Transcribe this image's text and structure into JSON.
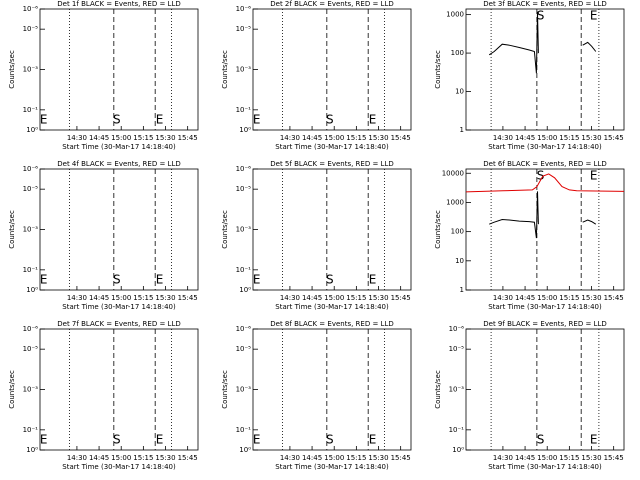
{
  "chart_data": [
    {
      "type": "line",
      "title": "Det 1f BLACK = Events, RED = LLD",
      "ylabel": "Counts/sec",
      "xlabel": "Start Time (30-Mar-17 14:18:40)",
      "log_y": true,
      "xlim": [
        845,
        952
      ],
      "ylim": [
        1,
        1e-06
      ],
      "xticks": [
        {
          "value": 870,
          "label": "14:30"
        },
        {
          "value": 885,
          "label": "14:45"
        },
        {
          "value": 900,
          "label": "15:00"
        },
        {
          "value": 915,
          "label": "15:15"
        },
        {
          "value": 930,
          "label": "15:30"
        },
        {
          "value": 945,
          "label": "15:45"
        }
      ],
      "yticks": [
        {
          "value": 1,
          "label": "10⁰"
        },
        {
          "value": 0.1,
          "label": "10⁻¹"
        },
        {
          "value": 0.001,
          "label": "10⁻³"
        },
        {
          "value": 1e-05,
          "label": "10⁻⁵"
        },
        {
          "value": 1e-06,
          "label": "10⁻⁶"
        }
      ],
      "vlines": [
        {
          "x": 865,
          "style": "dotted"
        },
        {
          "x": 895,
          "style": "dashed"
        },
        {
          "x": 923,
          "style": "dashed"
        },
        {
          "x": 934,
          "style": "dotted"
        }
      ],
      "annotations": [
        {
          "text": "E",
          "x": 847.5,
          "pos": "bottom"
        },
        {
          "text": "S",
          "x": 897,
          "pos": "bottom"
        },
        {
          "text": "E",
          "x": 926,
          "pos": "bottom"
        }
      ],
      "series": []
    },
    {
      "type": "line",
      "title": "Det 2f BLACK = Events, RED = LLD",
      "ylabel": "Counts/sec",
      "xlabel": "Start Time (30-Mar-17 14:18:40)",
      "log_y": true,
      "xlim": [
        845,
        952
      ],
      "ylim": [
        1,
        1e-06
      ],
      "xticks": [
        {
          "value": 870,
          "label": "14:30"
        },
        {
          "value": 885,
          "label": "14:45"
        },
        {
          "value": 900,
          "label": "15:00"
        },
        {
          "value": 915,
          "label": "15:15"
        },
        {
          "value": 930,
          "label": "15:30"
        },
        {
          "value": 945,
          "label": "15:45"
        }
      ],
      "yticks": [
        {
          "value": 1,
          "label": "10⁰"
        },
        {
          "value": 0.1,
          "label": "10⁻¹"
        },
        {
          "value": 0.001,
          "label": "10⁻³"
        },
        {
          "value": 1e-05,
          "label": "10⁻⁵"
        },
        {
          "value": 1e-06,
          "label": "10⁻⁶"
        }
      ],
      "vlines": [
        {
          "x": 865,
          "style": "dotted"
        },
        {
          "x": 895,
          "style": "dashed"
        },
        {
          "x": 923,
          "style": "dashed"
        },
        {
          "x": 934,
          "style": "dotted"
        }
      ],
      "annotations": [
        {
          "text": "E",
          "x": 847.5,
          "pos": "bottom"
        },
        {
          "text": "S",
          "x": 897,
          "pos": "bottom"
        },
        {
          "text": "E",
          "x": 926,
          "pos": "bottom"
        }
      ],
      "series": []
    },
    {
      "type": "line",
      "title": "Det 3f BLACK = Events, RED = LLD",
      "ylabel": "Counts/sec",
      "xlabel": "Start Time (30-Mar-17 14:18:40)",
      "log_y": true,
      "xlim": [
        845,
        952
      ],
      "ylim": [
        1,
        1400
      ],
      "xticks": [
        {
          "value": 870,
          "label": "14:30"
        },
        {
          "value": 885,
          "label": "14:45"
        },
        {
          "value": 900,
          "label": "15:00"
        },
        {
          "value": 915,
          "label": "15:15"
        },
        {
          "value": 930,
          "label": "15:30"
        },
        {
          "value": 945,
          "label": "15:45"
        }
      ],
      "yticks": [
        1,
        10,
        100,
        1000
      ],
      "vlines": [
        {
          "x": 862,
          "style": "dotted"
        },
        {
          "x": 893,
          "style": "dashed"
        },
        {
          "x": 923,
          "style": "dashed"
        },
        {
          "x": 935,
          "style": "dotted"
        }
      ],
      "annotations": [
        {
          "text": "S",
          "x": 895.5,
          "pos": "top"
        },
        {
          "text": "E",
          "x": 931.5,
          "pos": "top"
        }
      ],
      "series": [
        {
          "color": "#000000",
          "x": [
            860.7,
            864.1,
            869.5,
            874.3,
            881.1,
            887.9,
            891.3,
            892.7,
            893.4,
            894.0,
            null,
            924.0,
            927.4,
            930.1,
            932.9
          ],
          "values": [
            90,
            110,
            170,
            160,
            140,
            120,
            110,
            30,
            1200,
            100,
            null,
            160,
            190,
            150,
            110
          ]
        }
      ]
    },
    {
      "type": "line",
      "title": "Det 4f BLACK = Events, RED = LLD",
      "ylabel": "Counts/sec",
      "xlabel": "Start Time (30-Mar-17 14:18:40)",
      "log_y": true,
      "xlim": [
        845,
        952
      ],
      "ylim": [
        1,
        1e-06
      ],
      "xticks": [
        {
          "value": 870,
          "label": "14:30"
        },
        {
          "value": 885,
          "label": "14:45"
        },
        {
          "value": 900,
          "label": "15:00"
        },
        {
          "value": 915,
          "label": "15:15"
        },
        {
          "value": 930,
          "label": "15:30"
        },
        {
          "value": 945,
          "label": "15:45"
        }
      ],
      "yticks": [
        {
          "value": 1,
          "label": "10⁰"
        },
        {
          "value": 0.1,
          "label": "10⁻¹"
        },
        {
          "value": 0.001,
          "label": "10⁻³"
        },
        {
          "value": 1e-05,
          "label": "10⁻⁵"
        },
        {
          "value": 1e-06,
          "label": "10⁻⁶"
        }
      ],
      "vlines": [
        {
          "x": 865,
          "style": "dotted"
        },
        {
          "x": 895,
          "style": "dashed"
        },
        {
          "x": 923,
          "style": "dashed"
        },
        {
          "x": 934,
          "style": "dotted"
        }
      ],
      "annotations": [
        {
          "text": "E",
          "x": 847.5,
          "pos": "bottom"
        },
        {
          "text": "S",
          "x": 897,
          "pos": "bottom"
        },
        {
          "text": "E",
          "x": 926,
          "pos": "bottom"
        }
      ],
      "series": []
    },
    {
      "type": "line",
      "title": "Det 5f BLACK = Events, RED = LLD",
      "ylabel": "Counts/sec",
      "xlabel": "Start Time (30-Mar-17 14:18:40)",
      "log_y": true,
      "xlim": [
        845,
        952
      ],
      "ylim": [
        1,
        1e-06
      ],
      "xticks": [
        {
          "value": 870,
          "label": "14:30"
        },
        {
          "value": 885,
          "label": "14:45"
        },
        {
          "value": 900,
          "label": "15:00"
        },
        {
          "value": 915,
          "label": "15:15"
        },
        {
          "value": 930,
          "label": "15:30"
        },
        {
          "value": 945,
          "label": "15:45"
        }
      ],
      "yticks": [
        {
          "value": 1,
          "label": "10⁰"
        },
        {
          "value": 0.1,
          "label": "10⁻¹"
        },
        {
          "value": 0.001,
          "label": "10⁻³"
        },
        {
          "value": 1e-05,
          "label": "10⁻⁵"
        },
        {
          "value": 1e-06,
          "label": "10⁻⁶"
        }
      ],
      "vlines": [
        {
          "x": 865,
          "style": "dotted"
        },
        {
          "x": 895,
          "style": "dashed"
        },
        {
          "x": 923,
          "style": "dashed"
        },
        {
          "x": 934,
          "style": "dotted"
        }
      ],
      "annotations": [
        {
          "text": "E",
          "x": 847.5,
          "pos": "bottom"
        },
        {
          "text": "S",
          "x": 897,
          "pos": "bottom"
        },
        {
          "text": "E",
          "x": 926,
          "pos": "bottom"
        }
      ],
      "series": []
    },
    {
      "type": "line",
      "title": "Det 6f BLACK = Events, RED = LLD",
      "ylabel": "Counts/sec",
      "xlabel": "Start Time (30-Mar-17 14:18:40)",
      "log_y": true,
      "xlim": [
        845,
        952
      ],
      "ylim": [
        1,
        14000
      ],
      "xticks": [
        {
          "value": 870,
          "label": "14:30"
        },
        {
          "value": 885,
          "label": "14:45"
        },
        {
          "value": 900,
          "label": "15:00"
        },
        {
          "value": 915,
          "label": "15:15"
        },
        {
          "value": 930,
          "label": "15:30"
        },
        {
          "value": 945,
          "label": "15:45"
        }
      ],
      "yticks": [
        1,
        10,
        100,
        1000,
        10000
      ],
      "vlines": [
        {
          "x": 862,
          "style": "dotted"
        },
        {
          "x": 893,
          "style": "dashed"
        },
        {
          "x": 923,
          "style": "dashed"
        },
        {
          "x": 935,
          "style": "dotted"
        }
      ],
      "annotations": [
        {
          "text": "S",
          "x": 895.5,
          "pos": "top"
        },
        {
          "text": "E",
          "x": 931.5,
          "pos": "top"
        }
      ],
      "series": [
        {
          "color": "#000000",
          "x": [
            860.7,
            864.1,
            869.5,
            874.3,
            881.1,
            887.9,
            891.3,
            892.7,
            893.4,
            894.0,
            null,
            924.0,
            927.4,
            930.1,
            932.9
          ],
          "values": [
            180,
            210,
            260,
            250,
            230,
            220,
            210,
            60,
            2400,
            180,
            null,
            210,
            250,
            220,
            180
          ]
        },
        {
          "color": "#e00000",
          "x": [
            845,
            870,
            890,
            893,
            897,
            901,
            905,
            910,
            915,
            920,
            952
          ],
          "values": [
            2300,
            2500,
            2700,
            3500,
            8000,
            9500,
            7000,
            3500,
            2700,
            2500,
            2400
          ]
        }
      ]
    },
    {
      "type": "line",
      "title": "Det 7f BLACK = Events, RED = LLD",
      "ylabel": "Counts/sec",
      "xlabel": "Start Time (30-Mar-17 14:18:40)",
      "log_y": true,
      "xlim": [
        845,
        952
      ],
      "ylim": [
        1,
        1e-06
      ],
      "xticks": [
        {
          "value": 870,
          "label": "14:30"
        },
        {
          "value": 885,
          "label": "14:45"
        },
        {
          "value": 900,
          "label": "15:00"
        },
        {
          "value": 915,
          "label": "15:15"
        },
        {
          "value": 930,
          "label": "15:30"
        },
        {
          "value": 945,
          "label": "15:45"
        }
      ],
      "yticks": [
        {
          "value": 1,
          "label": "10⁰"
        },
        {
          "value": 0.1,
          "label": "10⁻¹"
        },
        {
          "value": 0.001,
          "label": "10⁻³"
        },
        {
          "value": 1e-05,
          "label": "10⁻⁵"
        },
        {
          "value": 1e-06,
          "label": "10⁻⁶"
        }
      ],
      "vlines": [
        {
          "x": 865,
          "style": "dotted"
        },
        {
          "x": 895,
          "style": "dashed"
        },
        {
          "x": 923,
          "style": "dashed"
        },
        {
          "x": 934,
          "style": "dotted"
        }
      ],
      "annotations": [
        {
          "text": "E",
          "x": 847.5,
          "pos": "bottom"
        },
        {
          "text": "S",
          "x": 897,
          "pos": "bottom"
        },
        {
          "text": "E",
          "x": 926,
          "pos": "bottom"
        }
      ],
      "series": []
    },
    {
      "type": "line",
      "title": "Det 8f BLACK = Events, RED = LLD",
      "ylabel": "Counts/sec",
      "xlabel": "Start Time (30-Mar-17 14:18:40)",
      "log_y": true,
      "xlim": [
        845,
        952
      ],
      "ylim": [
        1,
        1e-06
      ],
      "xticks": [
        {
          "value": 870,
          "label": "14:30"
        },
        {
          "value": 885,
          "label": "14:45"
        },
        {
          "value": 900,
          "label": "15:00"
        },
        {
          "value": 915,
          "label": "15:15"
        },
        {
          "value": 930,
          "label": "15:30"
        },
        {
          "value": 945,
          "label": "15:45"
        }
      ],
      "yticks": [
        {
          "value": 1,
          "label": "10⁰"
        },
        {
          "value": 0.1,
          "label": "10⁻¹"
        },
        {
          "value": 0.001,
          "label": "10⁻³"
        },
        {
          "value": 1e-05,
          "label": "10⁻⁵"
        },
        {
          "value": 1e-06,
          "label": "10⁻⁶"
        }
      ],
      "vlines": [
        {
          "x": 865,
          "style": "dotted"
        },
        {
          "x": 895,
          "style": "dashed"
        },
        {
          "x": 923,
          "style": "dashed"
        },
        {
          "x": 934,
          "style": "dotted"
        }
      ],
      "annotations": [
        {
          "text": "E",
          "x": 847.5,
          "pos": "bottom"
        },
        {
          "text": "S",
          "x": 897,
          "pos": "bottom"
        },
        {
          "text": "E",
          "x": 926,
          "pos": "bottom"
        }
      ],
      "series": []
    },
    {
      "type": "line",
      "title": "Det 9f BLACK = Events, RED = LLD",
      "ylabel": "Counts/sec",
      "xlabel": "Start Time (30-Mar-17 14:18:40)",
      "log_y": true,
      "xlim": [
        845,
        952
      ],
      "ylim": [
        1,
        1e-06
      ],
      "xticks": [
        {
          "value": 870,
          "label": "14:30"
        },
        {
          "value": 885,
          "label": "14:45"
        },
        {
          "value": 900,
          "label": "15:00"
        },
        {
          "value": 915,
          "label": "15:15"
        },
        {
          "value": 930,
          "label": "15:30"
        },
        {
          "value": 945,
          "label": "15:45"
        }
      ],
      "yticks": [
        {
          "value": 1,
          "label": "10⁰"
        },
        {
          "value": 0.1,
          "label": "10⁻¹"
        },
        {
          "value": 0.001,
          "label": "10⁻³"
        },
        {
          "value": 1e-05,
          "label": "10⁻⁵"
        },
        {
          "value": 1e-06,
          "label": "10⁻⁶"
        }
      ],
      "vlines": [
        {
          "x": 862,
          "style": "dotted"
        },
        {
          "x": 893,
          "style": "dashed"
        },
        {
          "x": 923,
          "style": "dashed"
        },
        {
          "x": 935,
          "style": "dotted"
        }
      ],
      "annotations": [
        {
          "text": "S",
          "x": 895.5,
          "pos": "bottom"
        },
        {
          "text": "E",
          "x": 931.5,
          "pos": "bottom"
        }
      ],
      "series": []
    }
  ]
}
